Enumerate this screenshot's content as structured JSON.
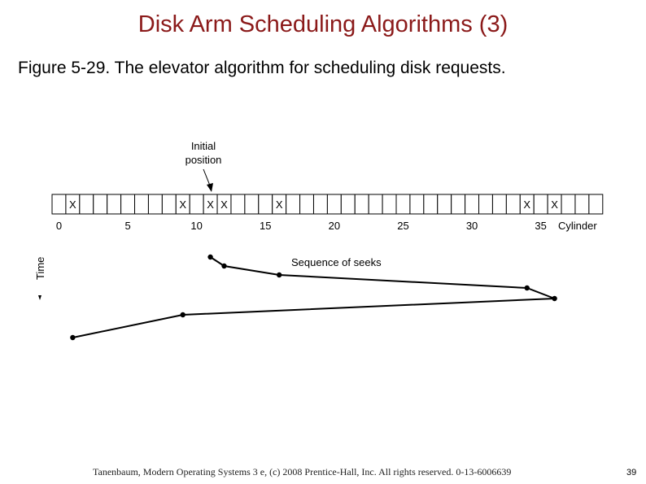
{
  "slide": {
    "title": "Disk Arm Scheduling Algorithms (3)",
    "caption": "Figure 5-29. The elevator algorithm for scheduling disk requests.",
    "footer": "Tanenbaum, Modern Operating Systems 3 e, (c) 2008 Prentice-Hall, Inc. All rights reserved. 0-13-6006639",
    "page_number": "39"
  },
  "diagram": {
    "initial_label_line1": "Initial",
    "initial_label_line2": "position",
    "axis_label": "Cylinder",
    "time_label": "Time",
    "seek_label": "Sequence of seeks",
    "cylinder_count": 40,
    "tick_labels": [
      "0",
      "5",
      "10",
      "15",
      "20",
      "25",
      "30",
      "35"
    ],
    "tick_values": [
      0,
      5,
      10,
      15,
      20,
      25,
      30,
      35
    ],
    "request_mark": "X",
    "requests": [
      1,
      9,
      11,
      12,
      16,
      34,
      36
    ],
    "initial_position": 11,
    "seek_order": [
      11,
      12,
      16,
      34,
      36,
      9,
      1
    ]
  }
}
